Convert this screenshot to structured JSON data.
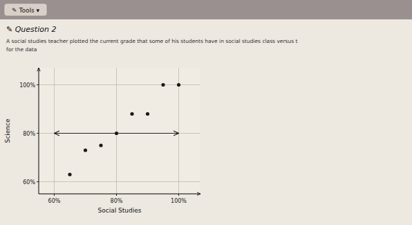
{
  "page": {
    "tools": "✎ Tools ▾",
    "heading": "✎ Question 2",
    "description": [
      "A social studies teacher plotted the current grade that some of his students have in social studies class versus t",
      "for the data"
    ]
  },
  "chart_data": {
    "type": "scatter",
    "x_label": "Social Studies",
    "y_label": "Science",
    "x": [
      65,
      70,
      75,
      80,
      85,
      90,
      95,
      100
    ],
    "values": [
      63,
      73,
      75,
      80,
      88,
      88,
      100,
      100
    ],
    "color": "#1a1a1a",
    "xlim": [
      55,
      107
    ],
    "ylim": [
      55,
      107
    ],
    "xticks": [
      {
        "value": 60,
        "label": "60%"
      },
      {
        "value": 80,
        "label": "80%"
      },
      {
        "value": 100,
        "label": "100%"
      }
    ],
    "yticks": [
      {
        "value": 60,
        "label": "60%"
      },
      {
        "value": 80,
        "label": "80%"
      },
      {
        "value": 100,
        "label": "100%"
      }
    ],
    "grid": true,
    "reference_line": {
      "y": 80,
      "x": [
        60,
        100
      ],
      "color": "#222222"
    }
  }
}
